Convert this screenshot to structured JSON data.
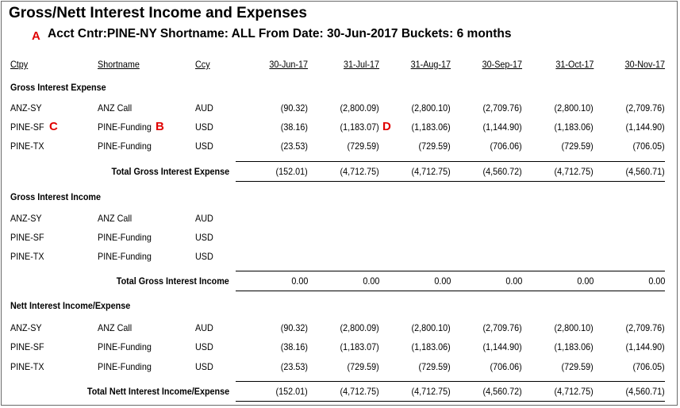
{
  "report": {
    "title": "Gross/Nett Interest Income and Expenses",
    "subtitle": "Acct Cntr:PINE-NY  Shortname: ALL  From Date: 30-Jun-2017 Buckets: 6 months"
  },
  "markers": {
    "A": "A",
    "B": "B",
    "C": "C",
    "D": "D"
  },
  "marker_color": "#e00000",
  "columns": {
    "ctpy": "Ctpy",
    "shortname": "Shortname",
    "ccy": "Ccy",
    "dates": [
      "30-Jun-17",
      "31-Jul-17",
      "31-Aug-17",
      "30-Sep-17",
      "31-Oct-17",
      "30-Nov-17"
    ]
  },
  "sections": [
    {
      "title": "Gross Interest Expense",
      "rows": [
        {
          "ctpy": "ANZ-SY",
          "shortname": "ANZ Call",
          "ccy": "AUD",
          "values": [
            "(90.32)",
            "(2,800.09)",
            "(2,800.10)",
            "(2,709.76)",
            "(2,800.10)",
            "(2,709.76)"
          ]
        },
        {
          "ctpy": "PINE-SF",
          "shortname": "PINE-Funding",
          "ccy": "USD",
          "values": [
            "(38.16)",
            "(1,183.07)",
            "(1,183.06)",
            "(1,144.90)",
            "(1,183.06)",
            "(1,144.90)"
          ]
        },
        {
          "ctpy": "PINE-TX",
          "shortname": "PINE-Funding",
          "ccy": "USD",
          "values": [
            "(23.53)",
            "(729.59)",
            "(729.59)",
            "(706.06)",
            "(729.59)",
            "(706.05)"
          ]
        }
      ],
      "total": {
        "label": "Total Gross Interest Expense",
        "values": [
          "(152.01)",
          "(4,712.75)",
          "(4,712.75)",
          "(4,560.72)",
          "(4,712.75)",
          "(4,560.71)"
        ]
      }
    },
    {
      "title": "Gross Interest Income",
      "rows": [
        {
          "ctpy": "ANZ-SY",
          "shortname": "ANZ Call",
          "ccy": "AUD",
          "values": [
            "",
            "",
            "",
            "",
            "",
            ""
          ]
        },
        {
          "ctpy": "PINE-SF",
          "shortname": "PINE-Funding",
          "ccy": "USD",
          "values": [
            "",
            "",
            "",
            "",
            "",
            ""
          ]
        },
        {
          "ctpy": "PINE-TX",
          "shortname": "PINE-Funding",
          "ccy": "USD",
          "values": [
            "",
            "",
            "",
            "",
            "",
            ""
          ]
        }
      ],
      "total": {
        "label": "Total Gross Interest Income",
        "values": [
          "0.00",
          "0.00",
          "0.00",
          "0.00",
          "0.00",
          "0.00"
        ]
      }
    },
    {
      "title": "Nett Interest Income/Expense",
      "rows": [
        {
          "ctpy": "ANZ-SY",
          "shortname": "ANZ Call",
          "ccy": "AUD",
          "values": [
            "(90.32)",
            "(2,800.09)",
            "(2,800.10)",
            "(2,709.76)",
            "(2,800.10)",
            "(2,709.76)"
          ]
        },
        {
          "ctpy": "PINE-SF",
          "shortname": "PINE-Funding",
          "ccy": "USD",
          "values": [
            "(38.16)",
            "(1,183.07)",
            "(1,183.06)",
            "(1,144.90)",
            "(1,183.06)",
            "(1,144.90)"
          ]
        },
        {
          "ctpy": "PINE-TX",
          "shortname": "PINE-Funding",
          "ccy": "USD",
          "values": [
            "(23.53)",
            "(729.59)",
            "(729.59)",
            "(706.06)",
            "(729.59)",
            "(706.05)"
          ]
        }
      ],
      "total": {
        "label": "Total Nett Interest Income/Expense",
        "values": [
          "(152.01)",
          "(4,712.75)",
          "(4,712.75)",
          "(4,560.72)",
          "(4,712.75)",
          "(4,560.71)"
        ]
      }
    }
  ]
}
